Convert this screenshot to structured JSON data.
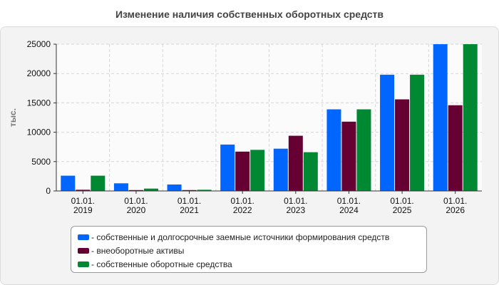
{
  "chart_data": {
    "type": "bar",
    "title": "Изменение наличия собственных оборотных средств",
    "ylabel": "тыс.",
    "xlabel": "",
    "ylim": [
      0,
      25000
    ],
    "yticks": [
      0,
      5000,
      10000,
      15000,
      20000,
      25000
    ],
    "grid": true,
    "legend_position": "bottom",
    "categories": [
      [
        "01.01.",
        "2019"
      ],
      [
        "01.01.",
        "2020"
      ],
      [
        "01.01.",
        "2021"
      ],
      [
        "01.01.",
        "2022"
      ],
      [
        "01.01.",
        "2023"
      ],
      [
        "01.01.",
        "2024"
      ],
      [
        "01.01.",
        "2025"
      ],
      [
        "01.01.",
        "2026"
      ]
    ],
    "series": [
      {
        "name": "- собственные и долгосрочные заемные источники формирования средств",
        "color": "#0066ff",
        "values": [
          2600,
          1300,
          1100,
          7900,
          7200,
          13900,
          19800,
          25000
        ]
      },
      {
        "name": "- внеоборотные активы",
        "color": "#660033",
        "values": [
          200,
          150,
          150,
          6700,
          9400,
          11800,
          15600,
          14600
        ]
      },
      {
        "name": "- собственные оборотные средства",
        "color": "#008833",
        "values": [
          2600,
          400,
          200,
          7000,
          6600,
          13900,
          19800,
          25000
        ]
      }
    ]
  }
}
